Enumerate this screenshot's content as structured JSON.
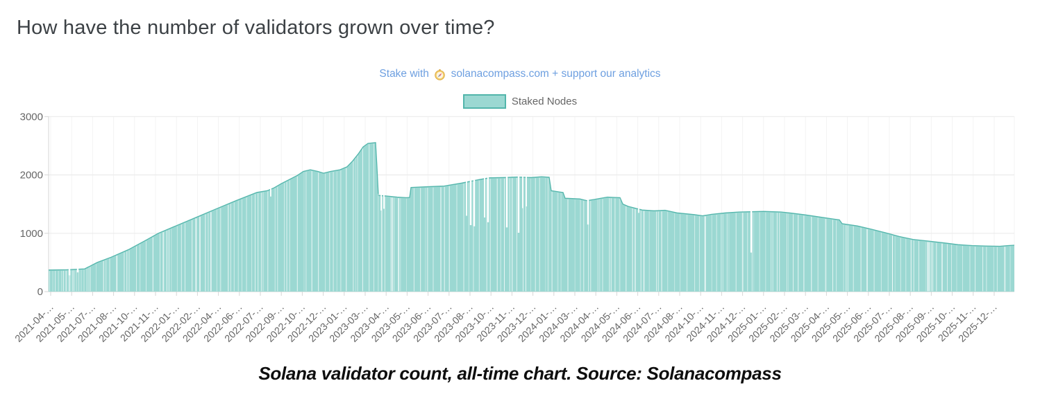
{
  "header": {
    "title": "How have the number of validators grown over time?"
  },
  "promo": {
    "prefix": "Stake with",
    "icon": "compass-emoji",
    "link_text": "solanacompass.com",
    "suffix": "+ support our analytics",
    "color": "#6d9fe0"
  },
  "legend": {
    "label": "Staked Nodes"
  },
  "caption": {
    "text": "Solana validator count, all-time chart. Source: Solanacompass"
  },
  "chart_data": {
    "type": "bar",
    "title": "Staked Nodes",
    "xlabel": "",
    "ylabel": "",
    "ylim": [
      0,
      3000
    ],
    "yticks": [
      0,
      1000,
      2000,
      3000
    ],
    "grid": true,
    "legend_position": "top-center",
    "x_tick_labels": [
      "2021-04-…",
      "2021-05-…",
      "2021-07-…",
      "2021-08-…",
      "2021-10-…",
      "2021-11-…",
      "2022-01-…",
      "2022-02-…",
      "2022-04-…",
      "2022-06-…",
      "2022-07-…",
      "2022-09-…",
      "2022-10-…",
      "2022-12-…",
      "2023-01-…",
      "2023-03-…",
      "2023-04-…",
      "2023-05-…",
      "2023-06-…",
      "2023-07-…",
      "2023-08-…",
      "2023-10-…",
      "2023-11-…",
      "2023-12-…",
      "2024-01-…",
      "2024-03-…",
      "2024-04-…",
      "2024-05-…",
      "2024-06-…",
      "2024-07-…",
      "2024-08-…",
      "2024-10-…",
      "2024-11-…",
      "2024-12-…",
      "2025-01-…",
      "2025-02-…",
      "2025-03-…",
      "2025-04-…",
      "2025-05-…",
      "2025-06-…",
      "2025-07-…",
      "2025-08-…",
      "2025-09-…",
      "2025-10-…",
      "2025-11-…",
      "2025-12-…"
    ],
    "colors": {
      "bar_fill": "#9bd8d2",
      "bar_border": "#52b5ab",
      "grid": "#ebebeb",
      "axis": "#dcdcdc",
      "tick_text": "#666666"
    },
    "series": [
      {
        "name": "Staked Nodes",
        "keypoints_format": [
          "x_fraction_of_plot",
          "validator_count",
          "approx_date"
        ],
        "keypoints": [
          [
            0.0,
            370,
            "2021-04"
          ],
          [
            0.019,
            375,
            "2021-04"
          ],
          [
            0.0374,
            390,
            "2021-06"
          ],
          [
            0.0503,
            500,
            "2021-07"
          ],
          [
            0.0647,
            590,
            "2021-07"
          ],
          [
            0.0827,
            720,
            "2021-09"
          ],
          [
            0.1006,
            880,
            "2021-10"
          ],
          [
            0.1136,
            1000,
            "2021-11"
          ],
          [
            0.1294,
            1110,
            "2021-12"
          ],
          [
            0.151,
            1260,
            "2022-01"
          ],
          [
            0.1725,
            1410,
            "2022-03"
          ],
          [
            0.1941,
            1560,
            "2022-05"
          ],
          [
            0.2157,
            1700,
            "2022-06"
          ],
          [
            0.2264,
            1730,
            "2022-07"
          ],
          [
            0.2336,
            1780,
            "2022-08"
          ],
          [
            0.2408,
            1850,
            "2022-09"
          ],
          [
            0.2574,
            1990,
            "2022-10"
          ],
          [
            0.2638,
            2060,
            "2022-10"
          ],
          [
            0.271,
            2090,
            "2022-10"
          ],
          [
            0.2789,
            2060,
            "2022-11"
          ],
          [
            0.2847,
            2030,
            "2022-12"
          ],
          [
            0.2919,
            2060,
            "2022-12"
          ],
          [
            0.3019,
            2090,
            "2022-12"
          ],
          [
            0.3091,
            2140,
            "2023-01"
          ],
          [
            0.3149,
            2240,
            "2023-01"
          ],
          [
            0.3206,
            2360,
            "2023-02"
          ],
          [
            0.3257,
            2480,
            "2023-02"
          ],
          [
            0.3307,
            2540,
            "2023-03"
          ],
          [
            0.3386,
            2555,
            "2023-03"
          ],
          [
            0.34,
            2150,
            "2023-03"
          ],
          [
            0.3415,
            1650,
            "2023-03"
          ],
          [
            0.3494,
            1640,
            "2023-04"
          ],
          [
            0.3609,
            1620,
            "2023-04"
          ],
          [
            0.371,
            1610,
            "2023-05"
          ],
          [
            0.3738,
            1615,
            "2023-05"
          ],
          [
            0.3753,
            1785,
            "2023-05"
          ],
          [
            0.3882,
            1795,
            "2023-05"
          ],
          [
            0.4098,
            1810,
            "2023-06"
          ],
          [
            0.4277,
            1860,
            "2023-07"
          ],
          [
            0.4457,
            1920,
            "2023-08"
          ],
          [
            0.4565,
            1950,
            "2023-09"
          ],
          [
            0.4709,
            1955,
            "2023-10"
          ],
          [
            0.4853,
            1965,
            "2023-11"
          ],
          [
            0.4996,
            1955,
            "2023-11"
          ],
          [
            0.5104,
            1970,
            "2023-12"
          ],
          [
            0.5183,
            1960,
            "2023-12"
          ],
          [
            0.5205,
            1730,
            "2023-12"
          ],
          [
            0.5284,
            1710,
            "2024-01"
          ],
          [
            0.5327,
            1700,
            "2024-01"
          ],
          [
            0.5349,
            1600,
            "2024-02"
          ],
          [
            0.55,
            1590,
            "2024-03"
          ],
          [
            0.5572,
            1560,
            "2024-03"
          ],
          [
            0.5651,
            1580,
            "2024-03"
          ],
          [
            0.5787,
            1620,
            "2024-04"
          ],
          [
            0.5917,
            1610,
            "2024-05"
          ],
          [
            0.5946,
            1500,
            "2024-05"
          ],
          [
            0.6003,
            1460,
            "2024-05"
          ],
          [
            0.6147,
            1400,
            "2024-06"
          ],
          [
            0.6269,
            1385,
            "2024-06"
          ],
          [
            0.6384,
            1395,
            "2024-07"
          ],
          [
            0.6506,
            1350,
            "2024-07"
          ],
          [
            0.6686,
            1320,
            "2024-09"
          ],
          [
            0.6772,
            1300,
            "2024-10"
          ],
          [
            0.6865,
            1325,
            "2024-10"
          ],
          [
            0.7009,
            1350,
            "2024-11"
          ],
          [
            0.7153,
            1365,
            "2024-11"
          ],
          [
            0.7405,
            1375,
            "2025-01"
          ],
          [
            0.7584,
            1365,
            "2025-01"
          ],
          [
            0.7692,
            1345,
            "2025-02"
          ],
          [
            0.7836,
            1315,
            "2025-03"
          ],
          [
            0.798,
            1280,
            "2025-03"
          ],
          [
            0.8124,
            1245,
            "2025-04"
          ],
          [
            0.8188,
            1230,
            "2025-04"
          ],
          [
            0.8217,
            1165,
            "2025-04"
          ],
          [
            0.8375,
            1125,
            "2025-05"
          ],
          [
            0.8519,
            1070,
            "2025-06"
          ],
          [
            0.8663,
            1010,
            "2025-06"
          ],
          [
            0.8807,
            945,
            "2025-07"
          ],
          [
            0.8951,
            895,
            "2025-08"
          ],
          [
            0.9117,
            865,
            "2025-08"
          ],
          [
            0.9275,
            835,
            "2025-09"
          ],
          [
            0.9418,
            805,
            "2025-10"
          ],
          [
            0.9562,
            790,
            "2025-10"
          ],
          [
            0.9706,
            782,
            "2025-11"
          ],
          [
            0.985,
            778,
            "2025-12"
          ],
          [
            0.9935,
            790,
            "2025-12"
          ],
          [
            1.0,
            795,
            "2025-12"
          ]
        ],
        "gap_dips_format": [
          "x_fraction_of_plot",
          "dip_low_value",
          "approx_date"
        ],
        "gap_dips": [
          [
            0.0216,
            280,
            "2021-05"
          ],
          [
            0.0302,
            330,
            "2021-05"
          ],
          [
            0.23,
            1630,
            "2022-08"
          ],
          [
            0.3444,
            1390,
            "2023-03"
          ],
          [
            0.3472,
            1420,
            "2023-04"
          ],
          [
            0.4328,
            1300,
            "2023-08"
          ],
          [
            0.4371,
            1140,
            "2023-08"
          ],
          [
            0.4407,
            1120,
            "2023-08"
          ],
          [
            0.4515,
            1270,
            "2023-09"
          ],
          [
            0.4551,
            1190,
            "2023-09"
          ],
          [
            0.4745,
            1100,
            "2023-10"
          ],
          [
            0.4867,
            1010,
            "2023-11"
          ],
          [
            0.491,
            1430,
            "2023-11"
          ],
          [
            0.4946,
            1460,
            "2023-11"
          ],
          [
            0.5586,
            1150,
            "2024-03"
          ],
          [
            0.6111,
            1350,
            "2024-06"
          ],
          [
            0.7276,
            670,
            "2025-01"
          ]
        ]
      }
    ]
  }
}
